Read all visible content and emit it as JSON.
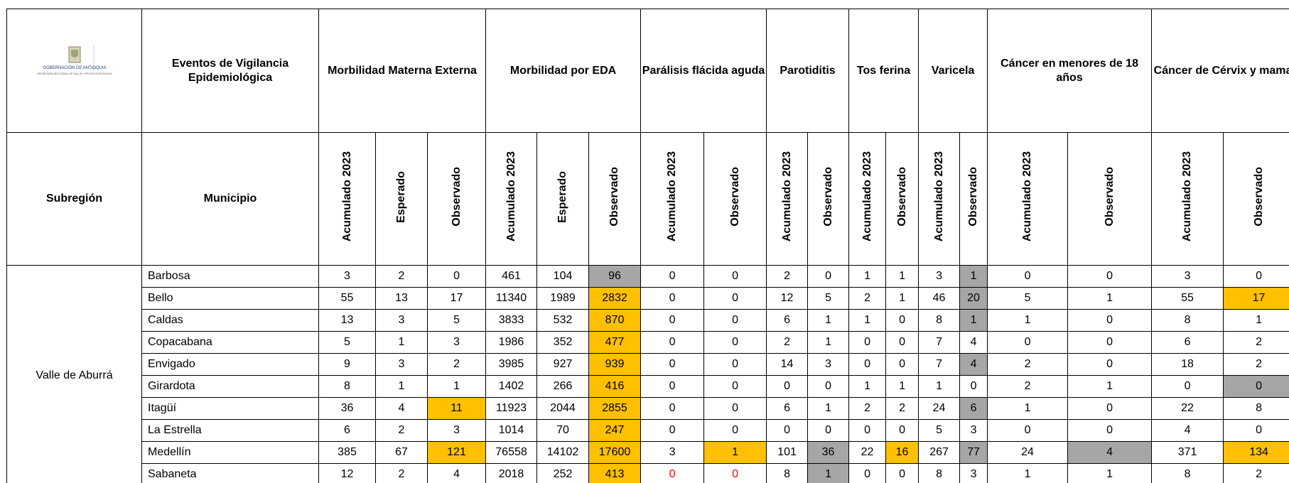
{
  "logo": {
    "title": "GOBERNACIÓN DE ANTIOQUIA",
    "subtitle": "SECRETARÍA SECCIONAL DE SALUD Y PROTECCIÓN SOCIAL"
  },
  "header": {
    "events_label": "Eventos de Vigilancia Epidemiológica",
    "subregion_label": "Subregión",
    "municipality_label": "Municipio",
    "groups": [
      {
        "name": "Morbilidad Materna Externa",
        "columns": [
          "Acumulado 2023",
          "Esperado",
          "Observado"
        ]
      },
      {
        "name": "Morbilidad por EDA",
        "columns": [
          "Acumulado 2023",
          "Esperado",
          "Observado"
        ]
      },
      {
        "name": "Parálisis flácida aguda",
        "columns": [
          "Acumulado 2023",
          "Observado"
        ]
      },
      {
        "name": "Parotiditis",
        "columns": [
          "Acumulado 2023",
          "Observado"
        ]
      },
      {
        "name": "Tos ferina",
        "columns": [
          "Acumulado 2023",
          "Observado"
        ]
      },
      {
        "name": "Varicela",
        "columns": [
          "Acumulado 2023",
          "Observado"
        ]
      },
      {
        "name": "Cáncer en menores de 18 años",
        "columns": [
          "Acumulado 2023",
          "Observado"
        ]
      },
      {
        "name": "Cáncer de Cérvix y mama",
        "columns": [
          "Acumulado 2023",
          "Observado"
        ]
      }
    ]
  },
  "table": {
    "subregion": "Valle de Aburrá",
    "rows": [
      {
        "municipio": "Barbosa",
        "cells": [
          {
            "v": 3
          },
          {
            "v": 2
          },
          {
            "v": 0
          },
          {
            "v": 461
          },
          {
            "v": 104
          },
          {
            "v": 96,
            "fill": "#a6a6a6"
          },
          {
            "v": 0
          },
          {
            "v": 0
          },
          {
            "v": 2
          },
          {
            "v": 0
          },
          {
            "v": 1
          },
          {
            "v": 1
          },
          {
            "v": 3
          },
          {
            "v": 1,
            "fill": "#a6a6a6"
          },
          {
            "v": 0
          },
          {
            "v": 0
          },
          {
            "v": 3
          },
          {
            "v": 0
          }
        ]
      },
      {
        "municipio": "Bello",
        "cells": [
          {
            "v": 55
          },
          {
            "v": 13
          },
          {
            "v": 17
          },
          {
            "v": 11340
          },
          {
            "v": 1989
          },
          {
            "v": 2832,
            "fill": "#ffc000"
          },
          {
            "v": 0
          },
          {
            "v": 0
          },
          {
            "v": 12
          },
          {
            "v": 5
          },
          {
            "v": 2
          },
          {
            "v": 1
          },
          {
            "v": 46
          },
          {
            "v": 20,
            "fill": "#a6a6a6"
          },
          {
            "v": 5
          },
          {
            "v": 1
          },
          {
            "v": 55
          },
          {
            "v": 17,
            "fill": "#ffc000"
          }
        ]
      },
      {
        "municipio": "Caldas",
        "cells": [
          {
            "v": 13
          },
          {
            "v": 3
          },
          {
            "v": 5
          },
          {
            "v": 3833
          },
          {
            "v": 532
          },
          {
            "v": 870,
            "fill": "#ffc000"
          },
          {
            "v": 0
          },
          {
            "v": 0
          },
          {
            "v": 6
          },
          {
            "v": 1
          },
          {
            "v": 1
          },
          {
            "v": 0
          },
          {
            "v": 8
          },
          {
            "v": 1,
            "fill": "#a6a6a6"
          },
          {
            "v": 1
          },
          {
            "v": 0
          },
          {
            "v": 8
          },
          {
            "v": 1
          }
        ]
      },
      {
        "municipio": "Copacabana",
        "cells": [
          {
            "v": 5
          },
          {
            "v": 1
          },
          {
            "v": 3
          },
          {
            "v": 1986
          },
          {
            "v": 352
          },
          {
            "v": 477,
            "fill": "#ffc000"
          },
          {
            "v": 0
          },
          {
            "v": 0
          },
          {
            "v": 2
          },
          {
            "v": 1
          },
          {
            "v": 0
          },
          {
            "v": 0
          },
          {
            "v": 7
          },
          {
            "v": 4
          },
          {
            "v": 0
          },
          {
            "v": 0
          },
          {
            "v": 6
          },
          {
            "v": 2
          }
        ]
      },
      {
        "municipio": "Envigado",
        "cells": [
          {
            "v": 9
          },
          {
            "v": 3
          },
          {
            "v": 2
          },
          {
            "v": 3985
          },
          {
            "v": 927
          },
          {
            "v": 939,
            "fill": "#ffc000"
          },
          {
            "v": 0
          },
          {
            "v": 0
          },
          {
            "v": 14
          },
          {
            "v": 3
          },
          {
            "v": 0
          },
          {
            "v": 0
          },
          {
            "v": 7
          },
          {
            "v": 4,
            "fill": "#a6a6a6"
          },
          {
            "v": 2
          },
          {
            "v": 0
          },
          {
            "v": 18
          },
          {
            "v": 2
          }
        ]
      },
      {
        "municipio": "Girardota",
        "cells": [
          {
            "v": 8
          },
          {
            "v": 1
          },
          {
            "v": 1
          },
          {
            "v": 1402
          },
          {
            "v": 266
          },
          {
            "v": 416,
            "fill": "#ffc000"
          },
          {
            "v": 0
          },
          {
            "v": 0
          },
          {
            "v": 0
          },
          {
            "v": 0
          },
          {
            "v": 1
          },
          {
            "v": 1
          },
          {
            "v": 1
          },
          {
            "v": 0
          },
          {
            "v": 2
          },
          {
            "v": 1
          },
          {
            "v": 0
          },
          {
            "v": 0,
            "fill": "#a6a6a6"
          }
        ]
      },
      {
        "municipio": "Itagüí",
        "cells": [
          {
            "v": 36
          },
          {
            "v": 4
          },
          {
            "v": 11,
            "fill": "#ffc000"
          },
          {
            "v": 11923
          },
          {
            "v": 2044
          },
          {
            "v": 2855,
            "fill": "#ffc000"
          },
          {
            "v": 0
          },
          {
            "v": 0
          },
          {
            "v": 6
          },
          {
            "v": 1
          },
          {
            "v": 2
          },
          {
            "v": 2
          },
          {
            "v": 24
          },
          {
            "v": 6,
            "fill": "#a6a6a6"
          },
          {
            "v": 1
          },
          {
            "v": 0
          },
          {
            "v": 22
          },
          {
            "v": 8
          }
        ]
      },
      {
        "municipio": "La Estrella",
        "cells": [
          {
            "v": 6
          },
          {
            "v": 2
          },
          {
            "v": 3
          },
          {
            "v": 1014
          },
          {
            "v": 70
          },
          {
            "v": 247,
            "fill": "#ffc000"
          },
          {
            "v": 0
          },
          {
            "v": 0
          },
          {
            "v": 0
          },
          {
            "v": 0
          },
          {
            "v": 0
          },
          {
            "v": 0
          },
          {
            "v": 5
          },
          {
            "v": 3
          },
          {
            "v": 0
          },
          {
            "v": 0
          },
          {
            "v": 4
          },
          {
            "v": 0
          }
        ]
      },
      {
        "municipio": "Medellín",
        "cells": [
          {
            "v": 385
          },
          {
            "v": 67
          },
          {
            "v": 121,
            "fill": "#ffc000"
          },
          {
            "v": 76558
          },
          {
            "v": 14102
          },
          {
            "v": 17600,
            "fill": "#ffc000"
          },
          {
            "v": 3
          },
          {
            "v": 1,
            "fill": "#ffc000"
          },
          {
            "v": 101
          },
          {
            "v": 36,
            "fill": "#a6a6a6"
          },
          {
            "v": 22
          },
          {
            "v": 16,
            "fill": "#ffc000"
          },
          {
            "v": 267
          },
          {
            "v": 77,
            "fill": "#a6a6a6"
          },
          {
            "v": 24
          },
          {
            "v": 4,
            "fill": "#a6a6a6"
          },
          {
            "v": 371
          },
          {
            "v": 134,
            "fill": "#ffc000"
          }
        ]
      },
      {
        "municipio": "Sabaneta",
        "cells": [
          {
            "v": 12
          },
          {
            "v": 2
          },
          {
            "v": 4
          },
          {
            "v": 2018
          },
          {
            "v": 252
          },
          {
            "v": 413,
            "fill": "#ffc000"
          },
          {
            "v": 0,
            "color": "#ff0000"
          },
          {
            "v": 0,
            "color": "#ff0000"
          },
          {
            "v": 8
          },
          {
            "v": 1,
            "fill": "#a6a6a6"
          },
          {
            "v": 0
          },
          {
            "v": 0
          },
          {
            "v": 8
          },
          {
            "v": 3
          },
          {
            "v": 1
          },
          {
            "v": 1
          },
          {
            "v": 8
          },
          {
            "v": 2
          }
        ]
      }
    ]
  }
}
